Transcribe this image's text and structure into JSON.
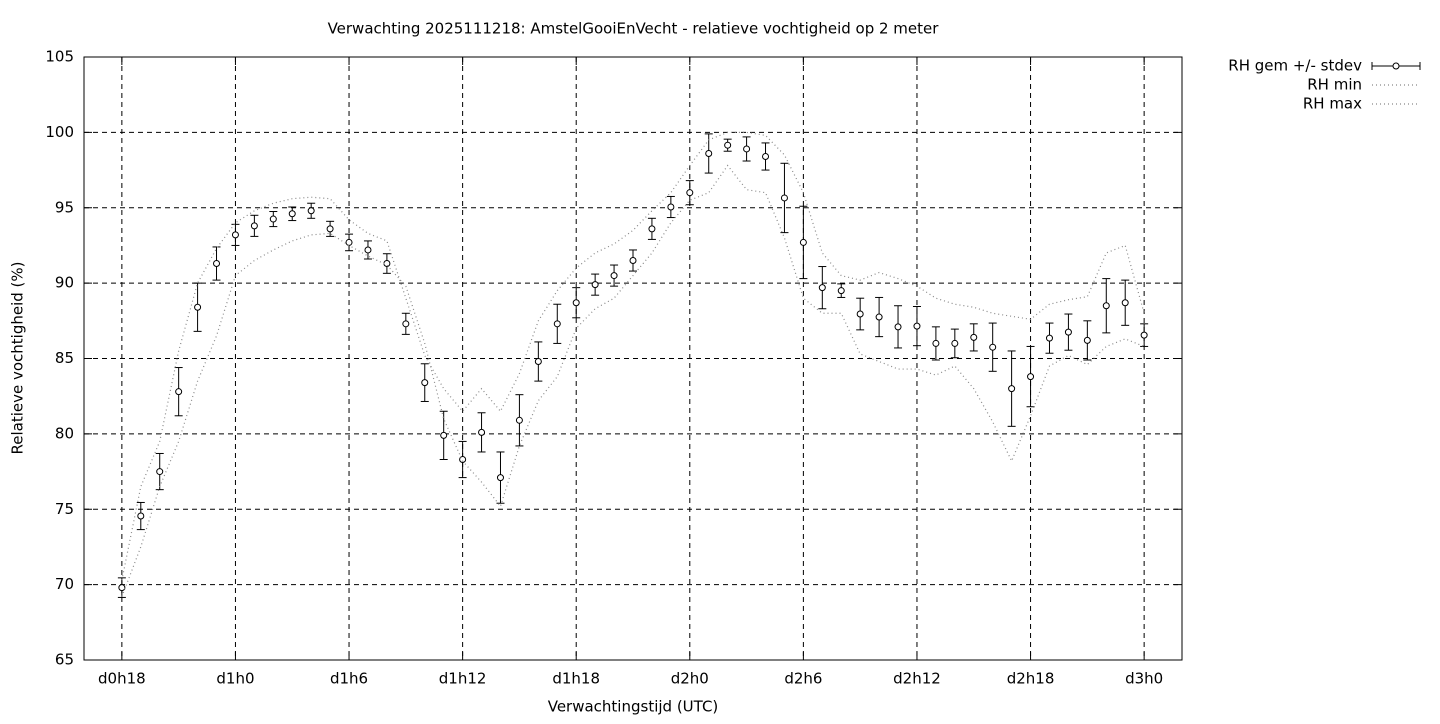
{
  "chart_data": {
    "type": "errorbar",
    "title": "Verwachting 2025111218: AmstelGooiEnVecht - relatieve vochtigheid op 2 meter",
    "x_label": "Verwachtingstijd (UTC)",
    "y_label": "Relatieve vochtigheid (%)",
    "x": [
      0,
      1,
      2,
      3,
      4,
      5,
      6,
      7,
      8,
      9,
      10,
      11,
      12,
      13,
      14,
      15,
      16,
      17,
      18,
      19,
      20,
      21,
      22,
      23,
      24,
      25,
      26,
      27,
      28,
      29,
      30,
      31,
      32,
      33,
      34,
      35,
      36,
      37,
      38,
      39,
      40,
      41,
      42,
      43,
      44,
      45,
      46,
      47,
      48,
      49,
      50,
      51,
      52,
      53,
      54
    ],
    "xlim": [
      -2,
      56
    ],
    "xticks": [
      {
        "value": 0,
        "label": "d0h18"
      },
      {
        "value": 6,
        "label": "d1h0"
      },
      {
        "value": 12,
        "label": "d1h6"
      },
      {
        "value": 18,
        "label": "d1h12"
      },
      {
        "value": 24,
        "label": "d1h18"
      },
      {
        "value": 30,
        "label": "d2h0"
      },
      {
        "value": 36,
        "label": "d2h6"
      },
      {
        "value": 42,
        "label": "d2h12"
      },
      {
        "value": 48,
        "label": "d2h18"
      },
      {
        "value": 54,
        "label": "d3h0"
      }
    ],
    "ylim": [
      65,
      105
    ],
    "yticks": [
      65,
      70,
      75,
      80,
      85,
      90,
      95,
      100,
      105
    ],
    "grid": true,
    "legend": "outside-top-right",
    "series": [
      {
        "name": "RH gem +/- stdev",
        "color": "#000000",
        "style": "errorbar",
        "values": [
          69.8,
          74.55,
          77.5,
          82.8,
          88.4,
          91.3,
          93.2,
          93.8,
          94.25,
          94.6,
          94.8,
          93.6,
          92.7,
          92.2,
          91.3,
          87.3,
          83.4,
          79.9,
          78.3,
          80.1,
          77.1,
          80.9,
          84.8,
          87.3,
          88.7,
          89.9,
          90.5,
          91.5,
          93.6,
          95.05,
          96.0,
          98.6,
          99.15,
          98.9,
          98.4,
          95.65,
          92.7,
          89.7,
          89.5,
          87.95,
          87.75,
          87.1,
          87.15,
          86.0,
          86.0,
          86.4,
          85.75,
          83.0,
          83.8,
          86.35,
          86.75,
          86.2,
          88.5,
          88.7,
          86.55
        ],
        "errors": [
          0.65,
          0.9,
          1.2,
          1.6,
          1.6,
          1.1,
          0.7,
          0.7,
          0.5,
          0.45,
          0.5,
          0.5,
          0.55,
          0.6,
          0.65,
          0.7,
          1.25,
          1.6,
          1.2,
          1.3,
          1.7,
          1.7,
          1.3,
          1.3,
          1.0,
          0.7,
          0.7,
          0.7,
          0.7,
          0.7,
          0.8,
          1.3,
          0.4,
          0.8,
          0.9,
          2.3,
          2.4,
          1.4,
          0.45,
          1.05,
          1.3,
          1.4,
          1.3,
          1.1,
          0.95,
          0.9,
          1.6,
          2.5,
          2.0,
          1.0,
          1.2,
          1.3,
          1.8,
          1.5,
          0.75
        ]
      },
      {
        "name": "RH min",
        "color": "#888888",
        "style": "dotted",
        "values": [
          69.2,
          72.5,
          76.5,
          79.5,
          83.5,
          86.5,
          90.5,
          91.5,
          92.2,
          92.8,
          93.2,
          93.3,
          92.5,
          91.8,
          91.2,
          89.8,
          86.0,
          81.0,
          78.2,
          76.8,
          75.2,
          79.2,
          82.2,
          83.8,
          87.0,
          88.3,
          89.0,
          90.5,
          92.0,
          94.0,
          95.5,
          96.0,
          97.8,
          96.2,
          96.0,
          93.0,
          89.0,
          88.0,
          88.0,
          85.3,
          84.8,
          84.3,
          84.3,
          83.9,
          84.5,
          83.0,
          80.8,
          78.2,
          81.2,
          84.5,
          85.2,
          84.6,
          85.8,
          86.3,
          85.8
        ]
      },
      {
        "name": "RH max",
        "color": "#888888",
        "style": "dotted",
        "values": [
          70.3,
          76.5,
          79.5,
          85.5,
          90.0,
          92.3,
          94.0,
          94.8,
          95.3,
          95.6,
          95.7,
          95.6,
          94.2,
          93.3,
          92.8,
          89.0,
          85.2,
          83.0,
          81.5,
          83.0,
          81.5,
          84.0,
          87.5,
          89.5,
          91.0,
          92.0,
          92.6,
          93.5,
          94.8,
          96.0,
          97.8,
          99.5,
          100.0,
          100.0,
          99.8,
          98.5,
          96.0,
          92.0,
          90.5,
          90.2,
          90.7,
          90.3,
          89.8,
          89.0,
          88.6,
          88.4,
          88.0,
          87.8,
          87.6,
          88.6,
          88.9,
          89.1,
          92.0,
          92.5,
          88.0
        ]
      }
    ]
  }
}
